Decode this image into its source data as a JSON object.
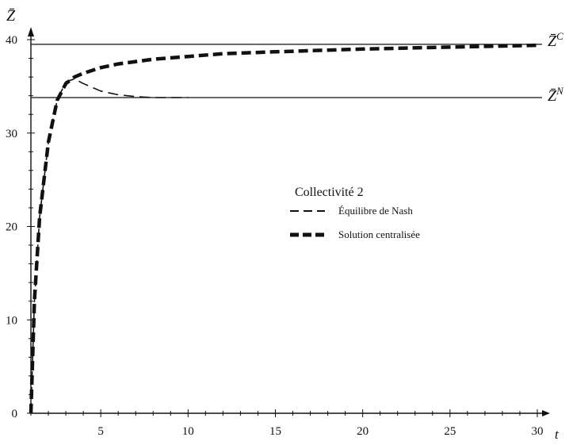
{
  "chart_data": {
    "type": "line",
    "title": "",
    "xlabel": "t",
    "ylabel": "Z̄",
    "xlim": [
      1,
      30
    ],
    "ylim": [
      0,
      40
    ],
    "xticks": [
      5,
      10,
      15,
      20,
      25,
      30
    ],
    "yticks": [
      0,
      10,
      20,
      30,
      40
    ],
    "x_tick_labels": [
      "5",
      "10",
      "15",
      "20",
      "25",
      "30"
    ],
    "y_tick_labels": [
      "0",
      "10",
      "20",
      "30",
      "40"
    ],
    "grid": false,
    "legend": {
      "title": "Collectivité 2",
      "placement": "center-right",
      "entries": [
        "Équilibre de Nash",
        "Solution centralisée"
      ]
    },
    "hlines": [
      {
        "label": "Z̄",
        "superscript": "C",
        "y": 39.5
      },
      {
        "label": "Z̄",
        "superscript": "N",
        "y": 33.8
      }
    ],
    "series": [
      {
        "name": "Équilibre de Nash",
        "style": "thin-dashed",
        "color": "#111111",
        "x": [
          1.0,
          1.2,
          1.5,
          2.0,
          2.5,
          3.0,
          3.5,
          4.0,
          5.0,
          6.0,
          7.0,
          8.0,
          9.0,
          10.0
        ],
        "y": [
          0,
          12.0,
          21.0,
          29.0,
          33.5,
          35.5,
          35.8,
          35.3,
          34.5,
          34.1,
          33.9,
          33.8,
          33.8,
          33.8
        ]
      },
      {
        "name": "Solution centralisée",
        "style": "thick-dashed",
        "color": "#111111",
        "x": [
          1.0,
          1.2,
          1.5,
          2.0,
          2.5,
          3.0,
          3.5,
          4.0,
          5.0,
          6.0,
          8.0,
          10.0,
          12.0,
          15.0,
          20.0,
          25.0,
          30.0
        ],
        "y": [
          0,
          12.0,
          21.0,
          29.0,
          33.5,
          35.3,
          36.0,
          36.4,
          37.0,
          37.4,
          37.9,
          38.2,
          38.5,
          38.7,
          39.0,
          39.2,
          39.4
        ]
      }
    ]
  }
}
